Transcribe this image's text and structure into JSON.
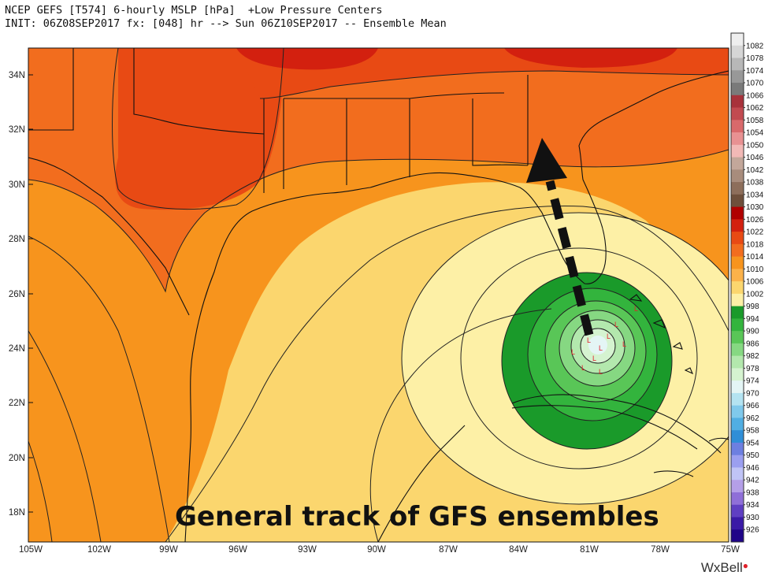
{
  "header": {
    "line1": "NCEP GEFS [T574] 6-hourly MSLP [hPa]  +Low Pressure Centers",
    "line2": "INIT: 06Z08SEP2017 fx: [048] hr --> Sun 06Z10SEP2017 -- Ensemble Mean"
  },
  "map": {
    "lat_labels": [
      "34N",
      "32N",
      "30N",
      "28N",
      "26N",
      "24N",
      "22N",
      "20N",
      "18N"
    ],
    "lon_labels": [
      "105W",
      "102W",
      "99W",
      "96W",
      "93W",
      "90W",
      "87W",
      "84W",
      "81W",
      "78W",
      "75W"
    ],
    "overlay_text": "General track of GFS ensembles",
    "track_arrow_color": "#111111",
    "low_center_color": "#e0222b"
  },
  "colorbar": {
    "levels": [
      "1082",
      "1078",
      "1074",
      "1070",
      "1066",
      "1062",
      "1058",
      "1054",
      "1050",
      "1046",
      "1042",
      "1038",
      "1034",
      "1030",
      "1026",
      "1022",
      "1018",
      "1014",
      "1010",
      "1006",
      "1002",
      "998",
      "994",
      "990",
      "986",
      "982",
      "978",
      "974",
      "970",
      "966",
      "962",
      "958",
      "954",
      "950",
      "946",
      "942",
      "938",
      "934",
      "930",
      "926"
    ],
    "colors": [
      "#eeeeee",
      "#d6d6d6",
      "#b8b8b8",
      "#989898",
      "#7a7a7a",
      "#a8323b",
      "#c24a50",
      "#d9696b",
      "#e89192",
      "#f2b9b6",
      "#c3a79a",
      "#a88c7c",
      "#8d6e5b",
      "#6e4f3b",
      "#b00000",
      "#d3200f",
      "#e84a14",
      "#f26d1e",
      "#f7941d",
      "#fbb24a",
      "#fbd66e",
      "#fdf0a6",
      "#1a9a2a",
      "#33b43d",
      "#59c657",
      "#86d882",
      "#b3e8ad",
      "#d5f3d0",
      "#e4f5f5",
      "#b4e3f1",
      "#80c9eb",
      "#51aee2",
      "#2f8ed7",
      "#6d7fe0",
      "#9b9ff0",
      "#c0c4f6",
      "#b49fe8",
      "#8f6fd8",
      "#5f3fc2",
      "#3a1aa6",
      "#1f0488"
    ]
  },
  "branding": {
    "logo_text": "WxBell"
  }
}
